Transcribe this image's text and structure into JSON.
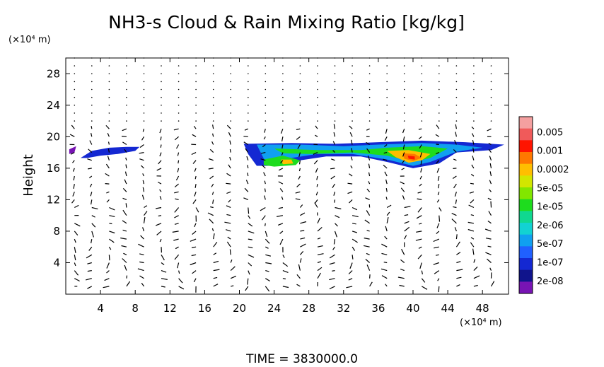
{
  "chart_data": {
    "type": "heatmap",
    "title": "NH3-s Cloud & Rain Mixing Ratio [kg/kg]",
    "ylabel": "Height",
    "y_unit": "(×10⁴ m)",
    "x_unit": "(×10⁴ m)",
    "footer": "TIME = 3830000.0",
    "xlim": [
      0,
      51
    ],
    "ylim": [
      0,
      30
    ],
    "x_ticks": [
      4,
      8,
      12,
      16,
      20,
      24,
      28,
      32,
      36,
      40,
      44,
      48
    ],
    "y_ticks": [
      4,
      8,
      12,
      16,
      20,
      24,
      28
    ],
    "colorbar": {
      "labels": [
        "0.005",
        "0.001",
        "0.0002",
        "5e-05",
        "1e-05",
        "2e-06",
        "5e-07",
        "1e-07",
        "2e-08"
      ],
      "colors": [
        "#f4a0a0",
        "#f05a5a",
        "#ff1400",
        "#ff7800",
        "#ffbe00",
        "#d2e600",
        "#82e600",
        "#1edc1e",
        "#10d890",
        "#12d2d2",
        "#10a0f0",
        "#2060ff",
        "#1428d2",
        "#10148c",
        "#7814b4"
      ]
    },
    "series": [
      {
        "name": "cloud-left",
        "points": [
          [
            1.7,
            17.3
          ],
          [
            3,
            18.2
          ],
          [
            5,
            18.6
          ],
          [
            7,
            18.7
          ],
          [
            8.5,
            18.7
          ],
          [
            8,
            18.2
          ],
          [
            6,
            17.8
          ],
          [
            4,
            17.6
          ],
          [
            2.5,
            17.3
          ]
        ],
        "level": 12
      },
      {
        "name": "cloud-right",
        "points": [
          [
            20.5,
            19.1
          ],
          [
            26,
            19.2
          ],
          [
            31,
            19.1
          ],
          [
            36,
            19.3
          ],
          [
            41,
            19.5
          ],
          [
            46,
            19.3
          ],
          [
            50.5,
            19.0
          ],
          [
            49,
            18.3
          ],
          [
            45,
            18.0
          ],
          [
            43,
            16.6
          ],
          [
            40,
            16.0
          ],
          [
            37,
            16.8
          ],
          [
            34,
            17.5
          ],
          [
            30,
            17.5
          ],
          [
            27,
            17.0
          ],
          [
            24,
            16.3
          ],
          [
            22,
            16.3
          ],
          [
            21,
            17.8
          ]
        ],
        "level": 12
      },
      {
        "name": "cloud-core",
        "points": [
          [
            22,
            19.0
          ],
          [
            27,
            19.0
          ],
          [
            32,
            18.8
          ],
          [
            36,
            19.0
          ],
          [
            41,
            19.2
          ],
          [
            45,
            19.0
          ],
          [
            48,
            18.6
          ],
          [
            45,
            18.1
          ],
          [
            42,
            16.8
          ],
          [
            40,
            16.3
          ],
          [
            37,
            17.1
          ],
          [
            33,
            17.8
          ],
          [
            29,
            17.8
          ],
          [
            26,
            17.3
          ],
          [
            23,
            16.8
          ]
        ],
        "level": 10
      },
      {
        "name": "cloud-green",
        "points": [
          [
            24,
            18.5
          ],
          [
            29,
            18.3
          ],
          [
            34,
            18.3
          ],
          [
            37,
            18.6
          ],
          [
            41,
            18.8
          ],
          [
            44,
            18.5
          ],
          [
            42,
            17.3
          ],
          [
            40,
            16.8
          ],
          [
            37,
            17.6
          ],
          [
            33,
            18.0
          ],
          [
            28,
            17.8
          ],
          [
            25,
            17.9
          ]
        ],
        "level": 7
      },
      {
        "name": "cloud-yellow",
        "points": [
          [
            37,
            18.2
          ],
          [
            39.5,
            18.3
          ],
          [
            42,
            17.8
          ],
          [
            41,
            17.0
          ],
          [
            39.5,
            16.7
          ],
          [
            38,
            17.4
          ]
        ],
        "level": 4
      },
      {
        "name": "cloud-orange",
        "points": [
          [
            38.8,
            17.9
          ],
          [
            40.2,
            17.8
          ],
          [
            41,
            17.3
          ],
          [
            40,
            16.9
          ],
          [
            39,
            17.2
          ]
        ],
        "level": 3
      },
      {
        "name": "cloud-red",
        "points": [
          [
            39.4,
            17.6
          ],
          [
            40.2,
            17.5
          ],
          [
            40.2,
            17.1
          ],
          [
            39.5,
            17.2
          ]
        ],
        "level": 2
      },
      {
        "name": "cloud-lower",
        "points": [
          [
            22.8,
            17.1
          ],
          [
            25,
            17.6
          ],
          [
            27,
            17.0
          ],
          [
            26.5,
            16.4
          ],
          [
            24,
            16.2
          ],
          [
            22.8,
            16.4
          ]
        ],
        "level": 7
      },
      {
        "name": "cloud-lower-yellow",
        "points": [
          [
            24.8,
            17.1
          ],
          [
            26,
            17.1
          ],
          [
            26.2,
            16.6
          ],
          [
            25,
            16.5
          ]
        ],
        "level": 4
      },
      {
        "name": "cloud-edge",
        "points": [
          [
            0.4,
            18.4
          ],
          [
            1.2,
            18.8
          ],
          [
            1.0,
            18.0
          ],
          [
            0.4,
            17.8
          ]
        ],
        "level": 14
      }
    ]
  }
}
